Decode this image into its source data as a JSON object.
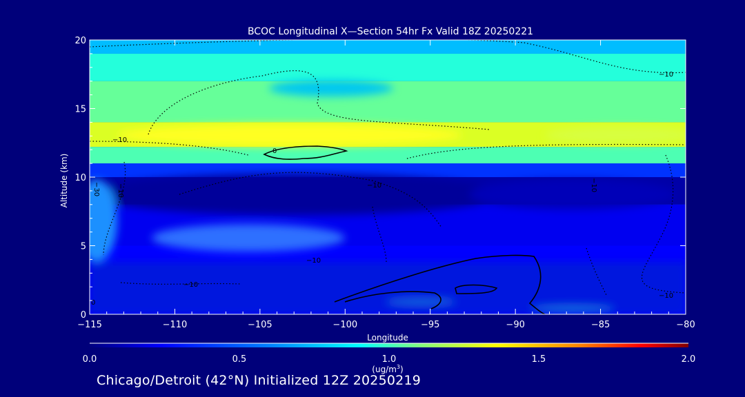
{
  "chart_data": {
    "type": "heatmap",
    "title": "BCOC Longitudinal X—Section 54hr  Fx Valid 18Z 20250221",
    "xlabel": "Longitude",
    "ylabel": "Altitude (km)",
    "xlim": [
      -115,
      -80
    ],
    "ylim": [
      0,
      20
    ],
    "x_ticks": [
      -115,
      -110,
      -105,
      -100,
      -95,
      -90,
      -85,
      -80
    ],
    "x_tick_labels": [
      "−115",
      "−110",
      "−105",
      "−100",
      "−95",
      "−90",
      "−85",
      "−80"
    ],
    "y_ticks": [
      0,
      5,
      10,
      15,
      20
    ],
    "y_tick_labels": [
      "0",
      "5",
      "10",
      "15",
      "20"
    ],
    "colorbar": {
      "range": [
        0.0,
        2.0
      ],
      "ticks": [
        "0.0",
        "0.5",
        "1.0",
        "1.5",
        "2.0"
      ],
      "units_main": "(ug/m",
      "units_sup": "3",
      "units_end": ")",
      "colors": [
        "#00007f",
        "#0000ff",
        "#0080ff",
        "#00ffff",
        "#80ff80",
        "#ffff00",
        "#ff8000",
        "#ff0000",
        "#800000"
      ]
    },
    "contour_labels": [
      "0",
      "−10",
      "−10",
      "−10",
      "−10",
      "−10",
      "−30",
      "−10",
      "−10",
      "−10",
      "0"
    ],
    "bands_description_units": "ug/m3",
    "layers": [
      {
        "alt": [
          19,
          20
        ],
        "value": 0.62
      },
      {
        "alt": [
          17,
          19
        ],
        "value": 0.82
      },
      {
        "alt": [
          14,
          17
        ],
        "value": 0.95
      },
      {
        "alt": [
          12.2,
          14
        ],
        "value": 1.18
      },
      {
        "alt": [
          11,
          12.2
        ],
        "value": 0.9
      },
      {
        "alt": [
          10,
          11
        ],
        "value": 0.35
      },
      {
        "alt": [
          8,
          10
        ],
        "value": 0.08
      },
      {
        "alt": [
          5,
          8
        ],
        "value": 0.22
      },
      {
        "alt": [
          0,
          5
        ],
        "value": 0.25
      }
    ]
  },
  "footer": {
    "text": "Chicago/Detroit (42°N) Initialized 12Z 20250219"
  }
}
